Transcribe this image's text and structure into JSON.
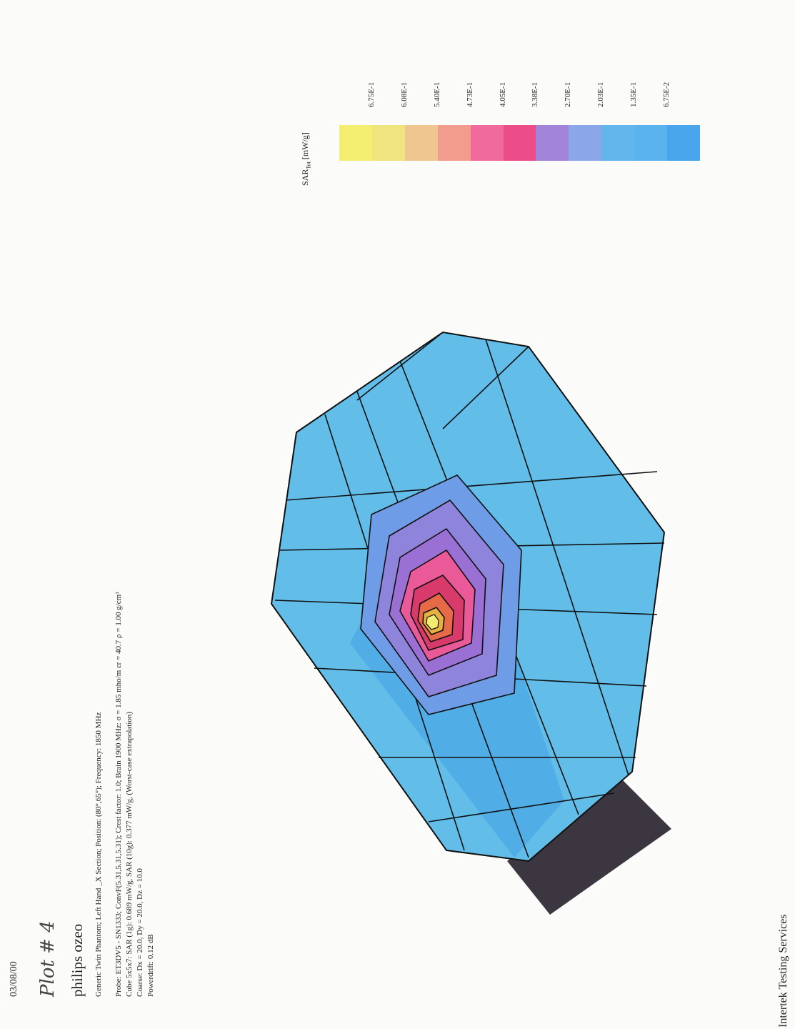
{
  "header": {
    "date": "03/08/00",
    "handwritten": "Plot # 4",
    "title": "philips ozeo"
  },
  "details": [
    "Generic Twin Phantom; Left Hand _X Section; Position: (80°,65°); Frequency: 1850 MHz",
    "Probe: ET3DV5 - SN1333; ConvF(5.31,5.31,5.31); Crest factor: 1.0; Brain 1900 MHz: σ = 1.85 mho/m εr = 40.7 ρ = 1.00 g/cm³",
    "Cube 5x5x7: SAR (1g): 0.689  mW/g, SAR (10g): 0.377  mW/g, (Worst-case extrapolation)",
    "Coarse: Dx = 20.0, Dy = 20.0, Dz = 10.0",
    "Powerdrift: 0.12 dB"
  ],
  "legend": {
    "title": "SAR",
    "subscript": "Tot",
    "unit": "[mW/g]",
    "labels": [
      "6.75E-1",
      "6.08E-1",
      "5.40E-1",
      "4.73E-1",
      "4.05E-1",
      "3.38E-1",
      "2.70E-1",
      "2.03E-1",
      "1.35E-1",
      "6.75E-2"
    ],
    "colors": [
      "#f4ee70",
      "#efe47e",
      "#f0c690",
      "#f29c8e",
      "#f06a9c",
      "#ec4c88",
      "#a284d8",
      "#8ca6ea",
      "#62b6ec",
      "#5ab2ee",
      "#4aa6ec"
    ]
  },
  "footer": {
    "company": "Intertek Testing Services"
  }
}
